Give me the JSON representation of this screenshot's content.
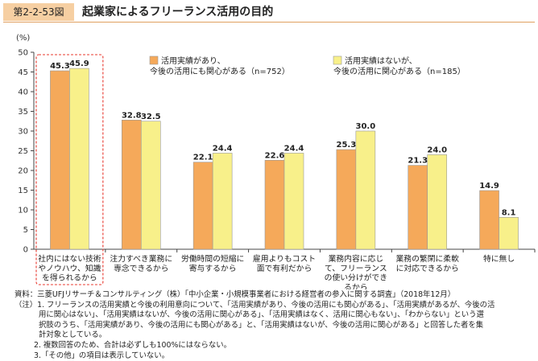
{
  "figure": {
    "label": "第2-2-53図",
    "title": "起業家によるフリーランス活用の目的"
  },
  "chart_data": {
    "type": "bar",
    "yunit": "(%)",
    "ylim": [
      0,
      50
    ],
    "yticks": [
      0,
      5,
      10,
      15,
      20,
      25,
      30,
      35,
      40,
      45,
      50
    ],
    "grid": false,
    "legend_placement": "top",
    "categories": [
      [
        "社内にはない技術",
        "やノウハウ、知識",
        "を得られるから"
      ],
      [
        "注力すべき業務に",
        "専念できるから"
      ],
      [
        "労働時間の短縮に",
        "寄与するから"
      ],
      [
        "雇用よりもコスト",
        "面で有利だから"
      ],
      [
        "業務内容に応じ",
        "て、フリーランス",
        "の使い分けができ",
        "るから"
      ],
      [
        "業務の繁閑に柔軟",
        "に対応できるから"
      ],
      [
        "特に無し"
      ]
    ],
    "series": [
      {
        "name": "活用実績があり、今後の活用にも関心がある（n=752）",
        "legend_lines": [
          "活用実績があり、",
          "今後の活用にも関心がある（n=752）"
        ],
        "color": "#f5a95a",
        "values": [
          45.3,
          32.8,
          22.1,
          22.6,
          25.3,
          21.3,
          14.9
        ],
        "labels": [
          "45.3",
          "32.8",
          "22.1",
          "22.6",
          "25.3",
          "21.3",
          "14.9"
        ]
      },
      {
        "name": "活用実績はないが、今後の活用に関心がある（n=185）",
        "legend_lines": [
          "活用実績はないが、",
          "今後の活用に関心がある（n=185）"
        ],
        "color": "#f8f08a",
        "values": [
          45.9,
          32.5,
          24.4,
          24.4,
          30.0,
          24.0,
          8.1
        ],
        "labels": [
          "45.9",
          "32.5",
          "24.4",
          "24.4",
          "30.0",
          "24.0",
          "8.1"
        ]
      }
    ],
    "highlight_category_index": 0,
    "highlight_color": "#e8382e"
  },
  "notes": {
    "source": "資料：三菱UFJリサーチ＆コンサルティング（株）「中小企業・小規模事業者における経営者の参入に関する調査」（2018年12月）",
    "note1_lines": [
      "（注）1. フリーランスの活用実績と今後の利用意向について、「活用実績があり、今後の活用にも関心がある」、「活用実績があるが、今後の活",
      "用に関心はない」、「活用実績はないが、今後の活用に関心がある」、「活用実績はなく、活用に関心もない」、「わからない」という選",
      "択肢のうち、「活用実績があり、今後の活用にも関心がある」と、「活用実績はないが、今後の活用に関心がある」と回答した者を集",
      "計対象としている。"
    ],
    "note2": "2. 複数回答のため、合計は必ずしも100%にはならない。",
    "note3": "3.「その他」の項目は表示していない。"
  }
}
